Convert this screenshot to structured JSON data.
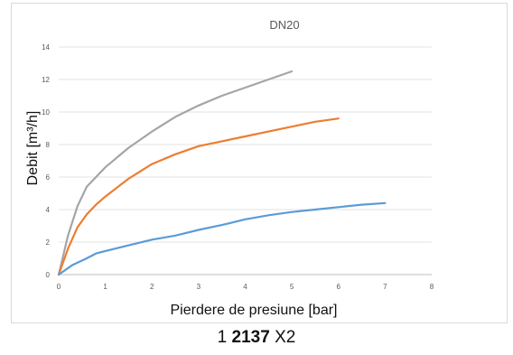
{
  "chart_data": {
    "type": "line",
    "title": "DN20",
    "xlabel": "Pierdere de presiune [bar]",
    "ylabel": "Debit [m³/h]",
    "xlim": [
      0,
      8
    ],
    "ylim": [
      0,
      14
    ],
    "x_ticks": [
      "0",
      "1",
      "2",
      "3",
      "4",
      "5",
      "6",
      "7",
      "8"
    ],
    "y_ticks": [
      "0",
      "2",
      "4",
      "6",
      "8",
      "10",
      "12",
      "14"
    ],
    "grid": "horizontal",
    "legend": "none",
    "series": [
      {
        "color": "#a5a5a5",
        "points": [
          [
            0,
            0
          ],
          [
            0.2,
            2.4
          ],
          [
            0.4,
            4.2
          ],
          [
            0.6,
            5.4
          ],
          [
            0.8,
            6.0
          ],
          [
            1,
            6.6
          ],
          [
            1.5,
            7.8
          ],
          [
            2,
            8.8
          ],
          [
            2.5,
            9.7
          ],
          [
            3,
            10.4
          ],
          [
            3.5,
            11.0
          ],
          [
            4,
            11.5
          ],
          [
            4.5,
            12.0
          ],
          [
            5,
            12.5
          ]
        ]
      },
      {
        "color": "#ed7d31",
        "points": [
          [
            0,
            0
          ],
          [
            0.2,
            1.6
          ],
          [
            0.4,
            2.9
          ],
          [
            0.6,
            3.7
          ],
          [
            0.8,
            4.3
          ],
          [
            1,
            4.8
          ],
          [
            1.5,
            5.9
          ],
          [
            2,
            6.8
          ],
          [
            2.5,
            7.4
          ],
          [
            3,
            7.9
          ],
          [
            3.5,
            8.2
          ],
          [
            4,
            8.5
          ],
          [
            4.5,
            8.8
          ],
          [
            5,
            9.1
          ],
          [
            5.5,
            9.4
          ],
          [
            6,
            9.6
          ]
        ]
      },
      {
        "color": "#5b9bd5",
        "points": [
          [
            0,
            0
          ],
          [
            0.3,
            0.6
          ],
          [
            0.6,
            1.0
          ],
          [
            0.8,
            1.3
          ],
          [
            1,
            1.45
          ],
          [
            1.5,
            1.8
          ],
          [
            2,
            2.15
          ],
          [
            2.5,
            2.4
          ],
          [
            3,
            2.75
          ],
          [
            3.5,
            3.05
          ],
          [
            4,
            3.4
          ],
          [
            4.5,
            3.65
          ],
          [
            5,
            3.85
          ],
          [
            5.5,
            4.0
          ],
          [
            6,
            4.15
          ],
          [
            6.5,
            4.3
          ],
          [
            7,
            4.4
          ]
        ]
      }
    ]
  },
  "caption": {
    "prefix": "1 ",
    "bold": "2137",
    "suffix": " X2"
  }
}
